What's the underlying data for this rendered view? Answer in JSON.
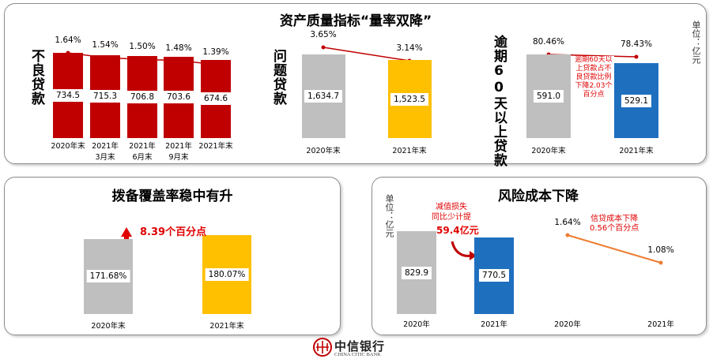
{
  "title": "资产质量指标“量率双降”",
  "logo": {
    "name": "中信银行",
    "sub": "CHINA CITIC BANK"
  },
  "chart_data": [
    {
      "type": "combo",
      "ylabel": "不良贷款",
      "categories": [
        "2020年末",
        "2021年\n3月末",
        "2021年\n6月末",
        "2021年\n9月末",
        "2021年末"
      ],
      "values": [
        734.5,
        715.3,
        706.8,
        703.6,
        674.6
      ],
      "color": "#c00000",
      "line": {
        "values": [
          1.64,
          1.54,
          1.5,
          1.48,
          1.39
        ],
        "value_labels": [
          "1.64%",
          "1.54%",
          "1.50%",
          "1.48%",
          "1.39%"
        ],
        "color": "#c00000"
      }
    },
    {
      "type": "combo",
      "ylabel": "问题贷款",
      "categories": [
        "2020年末",
        "2021年末"
      ],
      "values": [
        1634.7,
        1523.5
      ],
      "value_labels": [
        "1,634.7",
        "1,523.5"
      ],
      "colors": [
        "#bfbfbf",
        "#ffc000"
      ],
      "line": {
        "values": [
          3.65,
          3.14
        ],
        "value_labels": [
          "3.65%",
          "3.14%"
        ],
        "color": "#c00000"
      }
    },
    {
      "type": "combo",
      "ylabel": "逾期60天以上贷款",
      "unit": "单位：亿元",
      "categories": [
        "2020年末",
        "2021年末"
      ],
      "values": [
        591.0,
        529.1
      ],
      "value_labels": [
        "591.0",
        "529.1"
      ],
      "colors": [
        "#bfbfbf",
        "#1f6fbf"
      ],
      "line": {
        "values": [
          80.46,
          78.43
        ],
        "value_labels": [
          "80.46%",
          "78.43%"
        ],
        "color": "#c00000"
      },
      "annotation": "逾期60天以上贷款占不良贷款比例下降2.03个百分点"
    },
    {
      "type": "bar",
      "title": "拨备覆盖率稳中有升",
      "categories": [
        "2020年末",
        "2021年末"
      ],
      "values": [
        171.68,
        180.07
      ],
      "value_labels": [
        "171.68%",
        "180.07%"
      ],
      "colors": [
        "#bfbfbf",
        "#ffc000"
      ],
      "annotation": "8.39个百分点"
    },
    {
      "type": "bar",
      "title": "风险成本下降",
      "unit": "单位：亿元",
      "categories": [
        "2020年",
        "2021年"
      ],
      "values": [
        829.9,
        770.5
      ],
      "colors": [
        "#bfbfbf",
        "#1f6fbf"
      ],
      "annotation": "减值损失\n同比少计提",
      "annotation_value": "59.4亿元"
    },
    {
      "type": "line",
      "categories": [
        "2020年",
        "2021年"
      ],
      "values": [
        1.64,
        1.08
      ],
      "value_labels": [
        "1.64%",
        "1.08%"
      ],
      "color": "#ed7d31",
      "annotation": "信贷成本下降\n0.56个百分点"
    }
  ]
}
